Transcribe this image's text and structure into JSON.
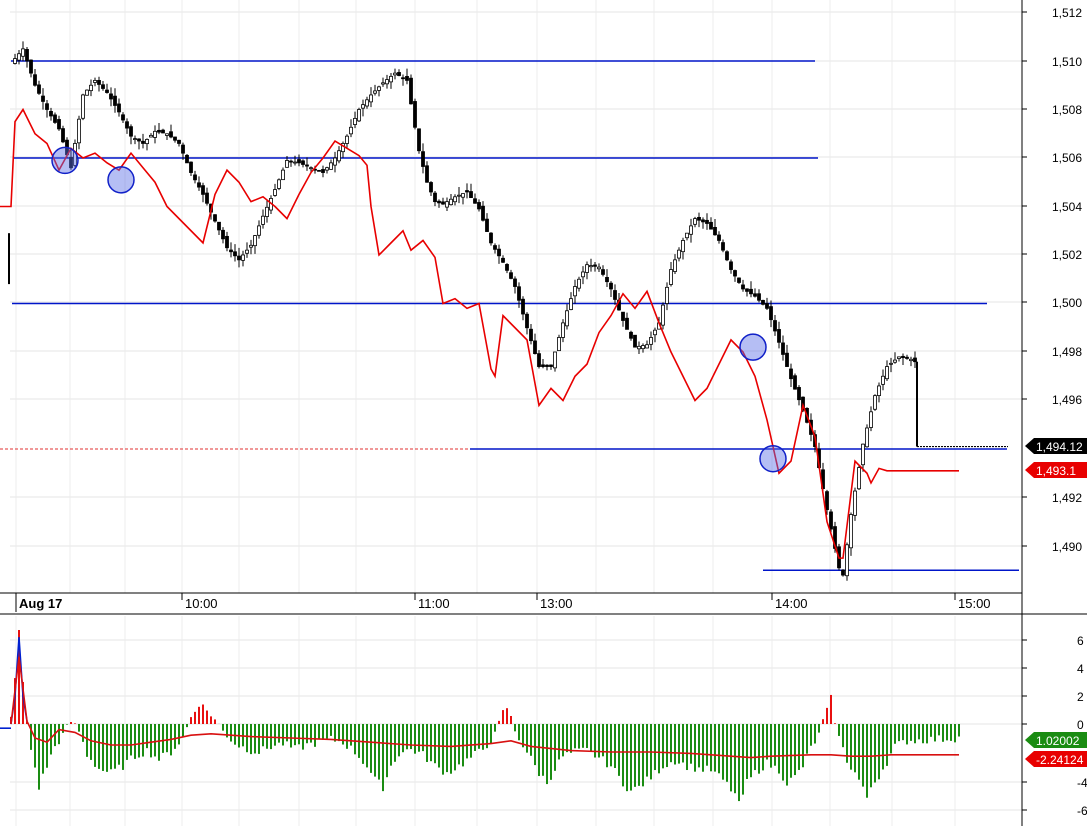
{
  "chart_data": [
    {
      "type": "candlestick",
      "x_tick_labels": [
        "Aug 17",
        "10:00",
        "11:00",
        "13:00",
        "14:00",
        "15:00"
      ],
      "y_tick_labels": [
        "1,512",
        "1,510",
        "1,508",
        "1,506",
        "1,504",
        "1,502",
        "1,500",
        "1,498",
        "1,496",
        "1,492",
        "1,490"
      ],
      "ylim": [
        1488.3,
        1512.3
      ],
      "grid": true,
      "price_path": [
        [
          0,
          1509.9
        ],
        [
          3,
          1510.5
        ],
        [
          6,
          1509.0
        ],
        [
          9,
          1508.0
        ],
        [
          12,
          1507.2
        ],
        [
          15,
          1505.6
        ],
        [
          18,
          1508.6
        ],
        [
          21,
          1509.2
        ],
        [
          24,
          1508.7
        ],
        [
          27,
          1507.9
        ],
        [
          30,
          1506.9
        ],
        [
          33,
          1506.6
        ],
        [
          36,
          1507.1
        ],
        [
          39,
          1507.0
        ],
        [
          42,
          1506.6
        ],
        [
          45,
          1505.4
        ],
        [
          48,
          1504.5
        ],
        [
          51,
          1503.4
        ],
        [
          54,
          1502.3
        ],
        [
          57,
          1501.8
        ],
        [
          60,
          1502.4
        ],
        [
          63,
          1503.6
        ],
        [
          66,
          1504.7
        ],
        [
          69,
          1505.9
        ],
        [
          72,
          1505.8
        ],
        [
          75,
          1505.6
        ],
        [
          78,
          1505.4
        ],
        [
          81,
          1506.0
        ],
        [
          84,
          1506.9
        ],
        [
          87,
          1508.0
        ],
        [
          90,
          1508.6
        ],
        [
          93,
          1509.1
        ],
        [
          96,
          1509.5
        ],
        [
          99,
          1509.2
        ],
        [
          102,
          1506.3
        ],
        [
          104,
          1505.0
        ],
        [
          106,
          1504.2
        ],
        [
          108,
          1504.1
        ],
        [
          111,
          1504.4
        ],
        [
          114,
          1504.6
        ],
        [
          117,
          1503.9
        ],
        [
          120,
          1502.5
        ],
        [
          123,
          1501.7
        ],
        [
          126,
          1500.7
        ],
        [
          129,
          1499.0
        ],
        [
          132,
          1497.4
        ],
        [
          135,
          1497.4
        ],
        [
          138,
          1499.2
        ],
        [
          141,
          1500.7
        ],
        [
          144,
          1501.6
        ],
        [
          147,
          1501.5
        ],
        [
          150,
          1500.6
        ],
        [
          153,
          1499.3
        ],
        [
          156,
          1498.2
        ],
        [
          159,
          1498.3
        ],
        [
          162,
          1499.2
        ],
        [
          165,
          1501.4
        ],
        [
          168,
          1502.6
        ],
        [
          171,
          1503.5
        ],
        [
          174,
          1503.3
        ],
        [
          177,
          1502.6
        ],
        [
          180,
          1501.4
        ],
        [
          183,
          1500.6
        ],
        [
          186,
          1500.3
        ],
        [
          189,
          1499.8
        ],
        [
          192,
          1498.4
        ],
        [
          195,
          1496.9
        ],
        [
          198,
          1495.6
        ],
        [
          201,
          1494.1
        ],
        [
          204,
          1491.5
        ],
        [
          207,
          1489.1
        ],
        [
          208,
          1488.8
        ],
        [
          210,
          1491.3
        ],
        [
          213,
          1494.2
        ],
        [
          216,
          1496.2
        ],
        [
          219,
          1497.4
        ],
        [
          222,
          1497.8
        ],
        [
          225,
          1497.7
        ],
        [
          226,
          1497.6
        ],
        [
          227,
          1494.1
        ]
      ],
      "series": [
        {
          "name": "",
          "color": "#e80000",
          "points": [
            [
              0,
              1504.0
            ],
            [
              1,
              1507.5
            ],
            [
              3,
              1508.0
            ],
            [
              6,
              1507.0
            ],
            [
              9,
              1506.6
            ],
            [
              12,
              1505.5
            ],
            [
              15,
              1506.4
            ],
            [
              18,
              1506.0
            ],
            [
              21,
              1506.2
            ],
            [
              24,
              1505.8
            ],
            [
              27,
              1505.5
            ],
            [
              30,
              1506.2
            ],
            [
              33,
              1505.6
            ],
            [
              36,
              1505.0
            ],
            [
              39,
              1504.0
            ],
            [
              42,
              1503.5
            ],
            [
              45,
              1503.0
            ],
            [
              48,
              1502.5
            ],
            [
              51,
              1504.5
            ],
            [
              54,
              1505.5
            ],
            [
              57,
              1505.0
            ],
            [
              60,
              1504.2
            ],
            [
              63,
              1504.4
            ],
            [
              66,
              1504.0
            ],
            [
              69,
              1503.5
            ],
            [
              72,
              1504.5
            ],
            [
              75,
              1505.4
            ],
            [
              78,
              1506.0
            ],
            [
              81,
              1506.7
            ],
            [
              84,
              1506.4
            ],
            [
              87,
              1506.1
            ],
            [
              89,
              1505.7
            ],
            [
              90,
              1504.0
            ],
            [
              92,
              1502.0
            ],
            [
              95,
              1502.5
            ],
            [
              98,
              1503.0
            ],
            [
              100,
              1502.2
            ],
            [
              103,
              1502.6
            ],
            [
              106,
              1501.9
            ],
            [
              108,
              1500.0
            ],
            [
              111,
              1500.2
            ],
            [
              114,
              1499.8
            ],
            [
              117,
              1500.0
            ],
            [
              120,
              1497.3
            ],
            [
              121,
              1497.0
            ],
            [
              123,
              1499.5
            ],
            [
              126,
              1499.0
            ],
            [
              129,
              1498.5
            ],
            [
              132,
              1495.8
            ],
            [
              135,
              1496.5
            ],
            [
              138,
              1496.0
            ],
            [
              141,
              1497.0
            ],
            [
              144,
              1497.5
            ],
            [
              147,
              1498.8
            ],
            [
              150,
              1499.5
            ],
            [
              153,
              1500.4
            ],
            [
              156,
              1499.8
            ],
            [
              159,
              1500.5
            ],
            [
              162,
              1499.2
            ],
            [
              165,
              1498.0
            ],
            [
              168,
              1497.0
            ],
            [
              171,
              1496.0
            ],
            [
              174,
              1496.5
            ],
            [
              177,
              1497.5
            ],
            [
              180,
              1498.5
            ],
            [
              183,
              1498.0
            ],
            [
              186,
              1497.0
            ],
            [
              189,
              1495.2
            ],
            [
              192,
              1493.0
            ],
            [
              195,
              1493.5
            ],
            [
              198,
              1495.8
            ],
            [
              201,
              1494.5
            ],
            [
              204,
              1491.0
            ],
            [
              207,
              1489.5
            ],
            [
              208,
              1489.5
            ],
            [
              211,
              1493.5
            ],
            [
              214,
              1493.0
            ],
            [
              215,
              1492.6
            ],
            [
              217,
              1493.2
            ],
            [
              219,
              1493.1
            ],
            [
              222,
              1493.1
            ],
            [
              224,
              1493.1
            ],
            [
              237,
              1493.1
            ]
          ]
        }
      ],
      "horizontal_lines": [
        1510.0,
        1506.0,
        1500.0,
        1494.0,
        1489.0
      ],
      "dashed_reference": 1494.0,
      "circles": [
        [
          12,
          1505.9
        ],
        [
          26,
          1505.1
        ],
        [
          184,
          1498.2
        ],
        [
          189,
          1493.6
        ]
      ],
      "value_labels": {
        "last_price": "1,494.12",
        "red_value": "1,493.1"
      }
    },
    {
      "type": "bar",
      "y_tick_labels": [
        "6",
        "4",
        "2",
        "0",
        "-4",
        "-6"
      ],
      "ylim": [
        -7,
        7
      ],
      "histogram_colors": {
        "positive": "#e81010",
        "negative": "#1a8c12"
      },
      "value_labels": {
        "green_value": "1.02002",
        "red_value": "-2.24124"
      },
      "histogram_path": [
        [
          0,
          0.4
        ],
        [
          1,
          3.5
        ],
        [
          2,
          6.5
        ],
        [
          3,
          3.0
        ],
        [
          4,
          0
        ],
        [
          5,
          -1.8
        ],
        [
          7,
          -4.5
        ],
        [
          9,
          -3.0
        ],
        [
          11,
          -1.6
        ],
        [
          13,
          -0.8
        ],
        [
          15,
          0.2
        ],
        [
          17,
          -0.5
        ],
        [
          19,
          -2.2
        ],
        [
          22,
          -3.2
        ],
        [
          25,
          -3.5
        ],
        [
          28,
          -3.0
        ],
        [
          31,
          -2.3
        ],
        [
          34,
          -1.9
        ],
        [
          37,
          -2.5
        ],
        [
          40,
          -2.0
        ],
        [
          43,
          -1.0
        ],
        [
          45,
          0.5
        ],
        [
          47,
          1.5
        ],
        [
          50,
          0.7
        ],
        [
          53,
          -0.5
        ],
        [
          56,
          -1.4
        ],
        [
          59,
          -1.8
        ],
        [
          62,
          -2.0
        ],
        [
          65,
          -1.6
        ],
        [
          68,
          -1.4
        ],
        [
          71,
          -1.8
        ],
        [
          74,
          -1.5
        ],
        [
          77,
          -1.3
        ],
        [
          80,
          -1.1
        ],
        [
          83,
          -1.3
        ],
        [
          86,
          -2.0
        ],
        [
          89,
          -3.0
        ],
        [
          91,
          -4.0
        ],
        [
          93,
          -4.5
        ],
        [
          95,
          -3.0
        ],
        [
          97,
          -2.1
        ],
        [
          100,
          -1.8
        ],
        [
          103,
          -2.2
        ],
        [
          106,
          -3.0
        ],
        [
          109,
          -3.5
        ],
        [
          112,
          -3.0
        ],
        [
          115,
          -2.4
        ],
        [
          118,
          -1.8
        ],
        [
          121,
          -0.8
        ],
        [
          123,
          0.8
        ],
        [
          124,
          1.2
        ],
        [
          125,
          0.4
        ],
        [
          126,
          -0.5
        ],
        [
          129,
          -2.0
        ],
        [
          132,
          -3.5
        ],
        [
          134,
          -4.2
        ],
        [
          136,
          -3.2
        ],
        [
          138,
          -2.3
        ],
        [
          141,
          -2.0
        ],
        [
          144,
          -1.9
        ],
        [
          147,
          -2.4
        ],
        [
          150,
          -3.0
        ],
        [
          153,
          -4.2
        ],
        [
          155,
          -4.8
        ],
        [
          157,
          -4.5
        ],
        [
          160,
          -3.8
        ],
        [
          163,
          -3.0
        ],
        [
          166,
          -2.6
        ],
        [
          169,
          -3.0
        ],
        [
          172,
          -3.2
        ],
        [
          175,
          -3.3
        ],
        [
          178,
          -4.0
        ],
        [
          181,
          -5.0
        ],
        [
          182,
          -5.8
        ],
        [
          184,
          -4.2
        ],
        [
          186,
          -3.5
        ],
        [
          189,
          -2.8
        ],
        [
          192,
          -3.3
        ],
        [
          194,
          -4.2
        ],
        [
          196,
          -3.8
        ],
        [
          198,
          -3.0
        ],
        [
          200,
          -1.7
        ],
        [
          202,
          -0.8
        ],
        [
          203,
          0.2
        ],
        [
          204,
          0.9
        ],
        [
          205,
          1.8
        ],
        [
          206,
          0.3
        ],
        [
          207,
          -1.0
        ],
        [
          209,
          -2.6
        ],
        [
          211,
          -3.5
        ],
        [
          213,
          -4.5
        ],
        [
          214,
          -5.5
        ],
        [
          215,
          -4.5
        ],
        [
          217,
          -3.7
        ],
        [
          219,
          -2.7
        ],
        [
          221,
          -1.6
        ],
        [
          224,
          -1.2
        ],
        [
          237,
          -1.0
        ]
      ],
      "signal_path": [
        [
          0,
          0.0
        ],
        [
          2,
          4.8
        ],
        [
          4,
          0.2
        ],
        [
          6,
          -1.0
        ],
        [
          9,
          -1.3
        ],
        [
          12,
          -0.4
        ],
        [
          16,
          -0.6
        ],
        [
          20,
          -1.2
        ],
        [
          25,
          -1.5
        ],
        [
          30,
          -1.5
        ],
        [
          35,
          -1.3
        ],
        [
          40,
          -1.1
        ],
        [
          45,
          -0.8
        ],
        [
          50,
          -0.7
        ],
        [
          55,
          -0.8
        ],
        [
          60,
          -0.9
        ],
        [
          70,
          -1.0
        ],
        [
          80,
          -1.1
        ],
        [
          90,
          -1.3
        ],
        [
          100,
          -1.5
        ],
        [
          110,
          -1.6
        ],
        [
          120,
          -1.4
        ],
        [
          125,
          -1.2
        ],
        [
          130,
          -1.6
        ],
        [
          140,
          -1.9
        ],
        [
          150,
          -2.0
        ],
        [
          160,
          -2.0
        ],
        [
          170,
          -2.1
        ],
        [
          180,
          -2.3
        ],
        [
          185,
          -2.4
        ],
        [
          190,
          -2.3
        ],
        [
          200,
          -2.2
        ],
        [
          205,
          -2.2
        ],
        [
          210,
          -2.3
        ],
        [
          215,
          -2.3
        ],
        [
          220,
          -2.2
        ],
        [
          237,
          -2.2
        ]
      ]
    }
  ]
}
